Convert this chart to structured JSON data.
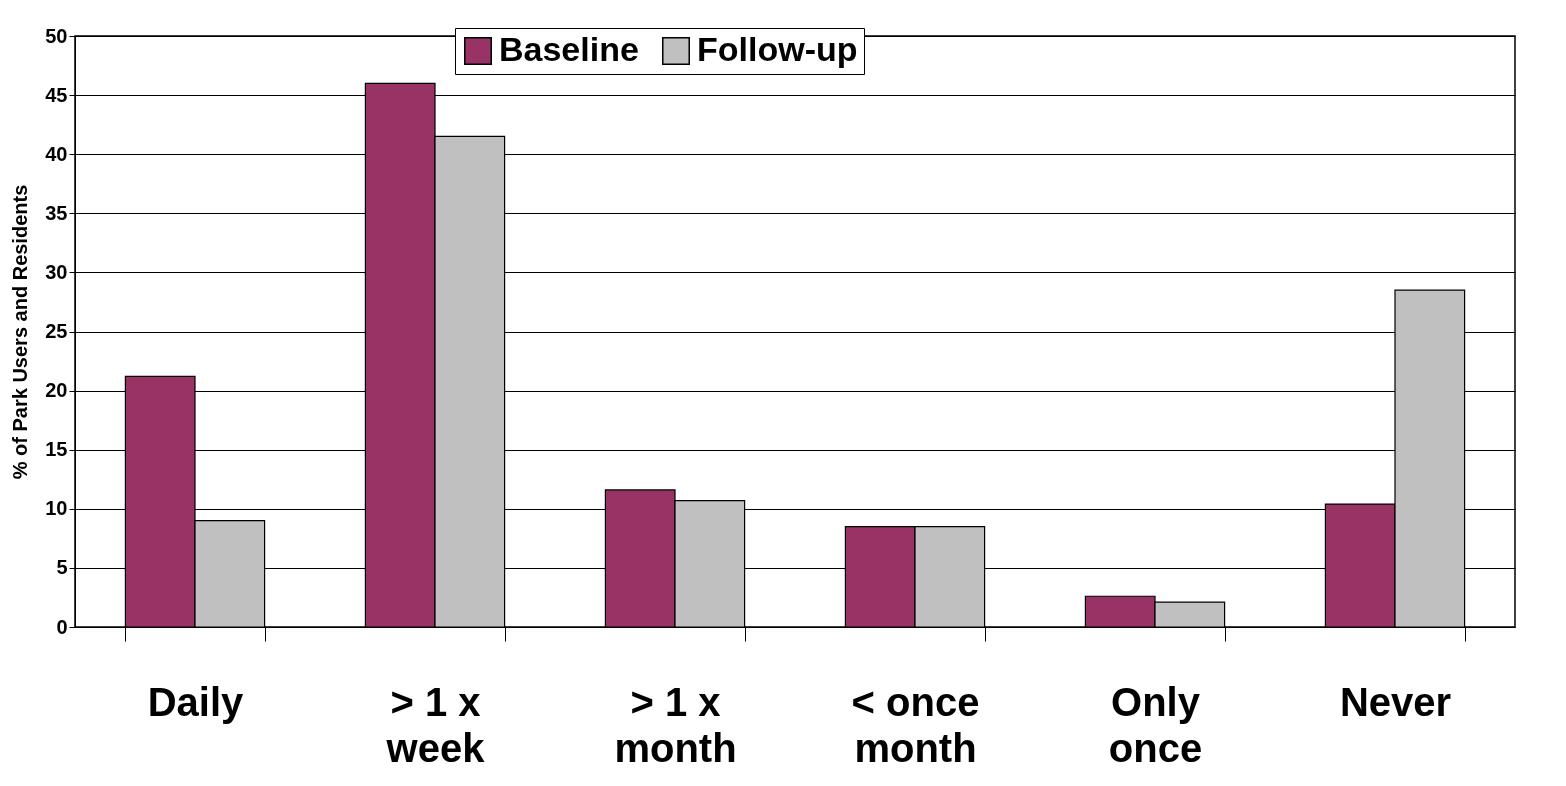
{
  "chart_data": {
    "type": "bar",
    "ylabel": "% of Park Users and Residents",
    "categories": [
      "Daily",
      "> 1 x\nweek",
      "> 1 x\nmonth",
      "< once\nmonth",
      "Only\nonce",
      "Never"
    ],
    "series": [
      {
        "name": "Baseline",
        "color": "#993366",
        "values": [
          21.2,
          46.0,
          11.6,
          8.5,
          2.6,
          10.4
        ]
      },
      {
        "name": "Follow-up",
        "color": "#c0c0c0",
        "values": [
          9.0,
          41.5,
          10.7,
          8.5,
          2.1,
          28.5
        ]
      }
    ],
    "ylim": [
      0,
      50
    ],
    "yticks": [
      0,
      5,
      10,
      15,
      20,
      25,
      30,
      35,
      40,
      45,
      50
    ],
    "grid": "y",
    "legend": "top"
  }
}
